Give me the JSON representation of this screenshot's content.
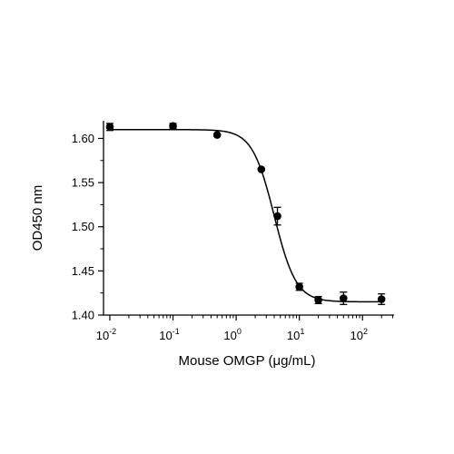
{
  "chart_data": {
    "type": "scatter",
    "title": "",
    "xlabel": "Mouse OMGP (μg/mL)",
    "ylabel": "OD450 nm",
    "x_scale": "log10",
    "xlim": [
      0.00794,
      316
    ],
    "ylim": [
      1.4,
      1.62
    ],
    "grid": false,
    "legend": "none",
    "x_ticks": [
      {
        "value": 0.01,
        "base": "10",
        "exp": "-2"
      },
      {
        "value": 0.1,
        "base": "10",
        "exp": "-1"
      },
      {
        "value": 1,
        "base": "10",
        "exp": "0"
      },
      {
        "value": 10,
        "base": "10",
        "exp": "1"
      },
      {
        "value": 100,
        "base": "10",
        "exp": "2"
      }
    ],
    "y_ticks": [
      {
        "value": 1.4,
        "label": "1.40"
      },
      {
        "value": 1.45,
        "label": "1.45"
      },
      {
        "value": 1.5,
        "label": "1.50"
      },
      {
        "value": 1.55,
        "label": "1.55"
      },
      {
        "value": 1.6,
        "label": "1.60"
      }
    ],
    "points": [
      {
        "x": 0.01,
        "y": 1.613,
        "err": 0.004
      },
      {
        "x": 0.1,
        "y": 1.614,
        "err": 0.003
      },
      {
        "x": 0.5,
        "y": 1.604,
        "err": 0.0
      },
      {
        "x": 2.5,
        "y": 1.565,
        "err": 0.0
      },
      {
        "x": 4.5,
        "y": 1.512,
        "err": 0.01
      },
      {
        "x": 10,
        "y": 1.432,
        "err": 0.004
      },
      {
        "x": 20,
        "y": 1.417,
        "err": 0.004
      },
      {
        "x": 50,
        "y": 1.419,
        "err": 0.007
      },
      {
        "x": 200,
        "y": 1.418,
        "err": 0.006
      }
    ],
    "fit": {
      "model": "4PL",
      "top": 1.61,
      "bottom": 1.415,
      "ec50": 4.0,
      "hill": 2.5
    },
    "colors": {
      "marks": "#000000"
    }
  }
}
